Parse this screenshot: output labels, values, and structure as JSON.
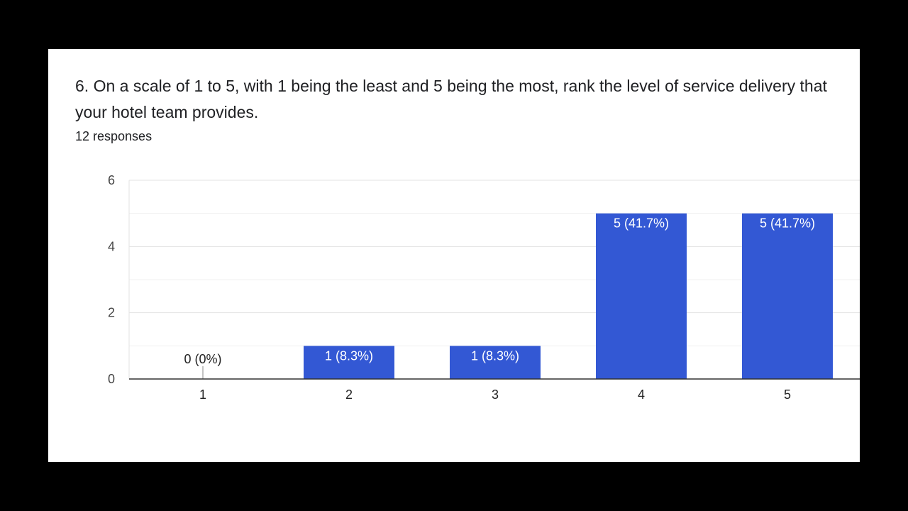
{
  "question": {
    "text": "6.  On a scale of 1 to 5, with 1 being the least and 5 being the most, rank the level of service delivery that your hotel team provides.",
    "responses": "12 responses"
  },
  "chart_data": {
    "type": "bar",
    "categories": [
      "1",
      "2",
      "3",
      "4",
      "5"
    ],
    "values": [
      0,
      1,
      1,
      5,
      5
    ],
    "data_labels": [
      "0 (0%)",
      "1 (8.3%)",
      "1 (8.3%)",
      "5 (41.7%)",
      "5 (41.7%)"
    ],
    "y_ticks": [
      "0",
      "2",
      "4",
      "6"
    ],
    "ylim": [
      0,
      6
    ],
    "grid": true,
    "bar_color": "#3358d4"
  }
}
